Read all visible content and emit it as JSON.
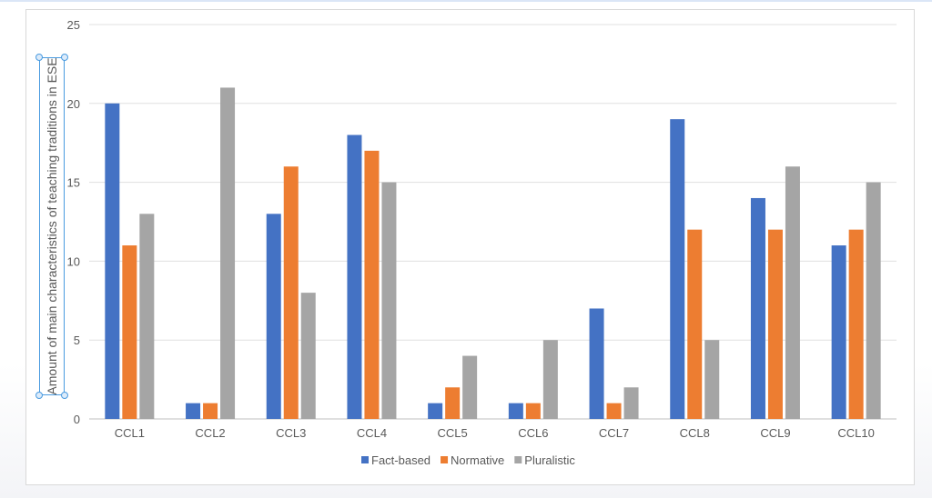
{
  "chart_data": {
    "type": "bar",
    "title": "",
    "xlabel": "",
    "ylabel": "Amount of main characteristics of teaching traditions in ESE",
    "ylim": [
      0,
      25
    ],
    "yticks": [
      0,
      5,
      10,
      15,
      20,
      25
    ],
    "grid": true,
    "legend_position": "bottom",
    "categories": [
      "CCL1",
      "CCL2",
      "CCL3",
      "CCL4",
      "CCL5",
      "CCL6",
      "CCL7",
      "CCL8",
      "CCL9",
      "CCL10"
    ],
    "series": [
      {
        "name": "Fact-based",
        "color": "#4472c4",
        "values": [
          20,
          1,
          13,
          18,
          1,
          1,
          7,
          19,
          14,
          11
        ]
      },
      {
        "name": "Normative",
        "color": "#ed7d31",
        "values": [
          11,
          1,
          16,
          17,
          2,
          1,
          1,
          12,
          12,
          12
        ]
      },
      {
        "name": "Pluralistic",
        "color": "#a5a5a5",
        "values": [
          13,
          21,
          8,
          15,
          4,
          5,
          2,
          5,
          16,
          15
        ]
      }
    ]
  }
}
